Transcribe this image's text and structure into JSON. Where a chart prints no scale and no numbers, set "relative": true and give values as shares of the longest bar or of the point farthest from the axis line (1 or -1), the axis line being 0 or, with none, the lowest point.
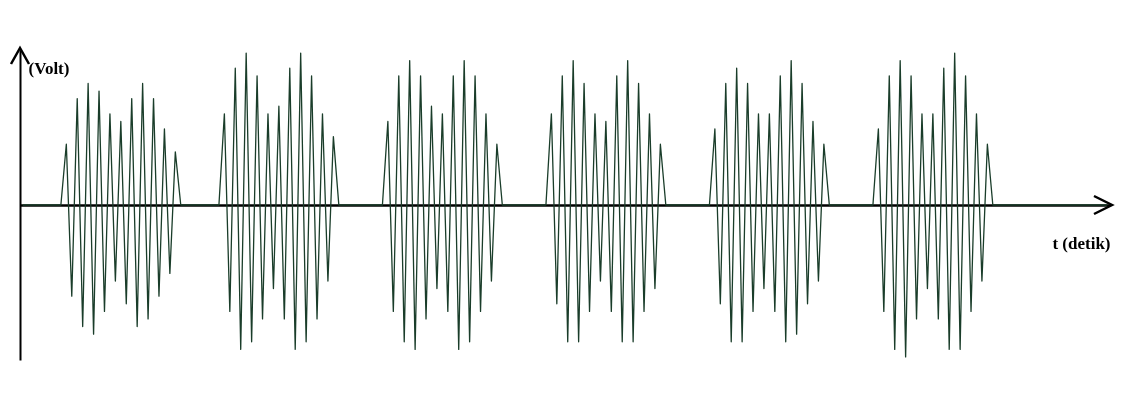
{
  "chart_data": {
    "type": "line",
    "xlabel": "t (detik)",
    "ylabel": "(Volt)",
    "relative": true,
    "line_style": "solid",
    "categories": [
      null,
      null,
      null,
      null,
      null,
      null,
      null,
      null,
      null,
      null,
      null,
      null,
      null,
      null,
      null,
      null,
      null,
      null,
      null,
      null,
      null,
      null,
      null,
      null,
      null,
      null,
      null,
      null,
      null,
      null,
      null,
      null,
      null,
      null,
      null,
      null,
      null,
      null,
      null,
      null,
      null,
      null,
      null,
      null,
      null,
      null,
      null,
      null,
      null,
      null,
      null,
      null,
      null,
      null,
      null,
      null,
      null,
      null,
      null,
      null,
      null,
      null,
      null,
      null,
      null,
      null,
      null,
      null,
      null,
      null,
      null,
      null,
      null,
      null,
      null,
      null,
      null,
      null,
      null,
      null,
      null,
      null,
      null,
      null,
      null,
      null,
      null,
      null,
      null,
      null,
      null,
      null,
      null,
      null,
      null,
      null,
      null,
      null,
      null,
      null,
      null,
      null,
      null,
      null,
      null,
      null,
      null,
      null,
      null,
      null,
      null,
      null,
      null,
      null,
      null,
      null,
      null,
      null,
      null,
      null,
      null,
      null,
      null,
      null,
      null,
      null,
      null,
      null,
      null,
      null,
      null,
      null,
      null,
      null,
      null,
      null,
      null,
      null,
      null,
      null,
      null,
      null,
      null,
      null,
      null,
      null,
      null,
      null,
      null,
      null,
      null,
      null,
      null,
      null,
      null,
      null,
      null,
      null,
      null,
      null,
      null,
      null,
      null,
      null,
      null,
      null,
      null,
      null,
      null,
      null,
      null,
      null,
      null,
      null,
      null,
      null,
      null,
      null,
      null,
      null,
      null,
      null,
      null,
      null,
      null,
      null,
      null,
      null,
      null,
      null,
      null,
      null,
      null,
      null,
      null,
      null,
      null,
      null,
      null,
      null
    ],
    "series": [
      {
        "color": "#1a3d2a",
        "values": [
          0,
          0,
          0,
          0,
          0,
          0,
          0,
          0,
          0.4,
          -0.6,
          0.7,
          -0.8,
          0.8,
          -0.85,
          0.75,
          -0.7,
          0.6,
          -0.5,
          0.55,
          -0.65,
          0.7,
          -0.8,
          0.8,
          -0.75,
          0.7,
          -0.6,
          0.5,
          -0.45,
          0.35,
          0,
          0,
          0,
          0,
          0,
          0,
          0,
          0,
          0.6,
          -0.7,
          0.9,
          -0.95,
          1.0,
          -0.9,
          0.85,
          -0.75,
          0.6,
          -0.55,
          0.65,
          -0.75,
          0.9,
          -0.95,
          1.0,
          -0.9,
          0.85,
          -0.75,
          0.6,
          -0.5,
          0.45,
          0,
          0,
          0,
          0,
          0,
          0,
          0,
          0,
          0,
          0.55,
          -0.7,
          0.85,
          -0.9,
          0.95,
          -0.95,
          0.85,
          -0.75,
          0.65,
          -0.55,
          0.6,
          -0.7,
          0.85,
          -0.95,
          0.95,
          -0.9,
          0.85,
          -0.7,
          0.6,
          -0.5,
          0.4,
          0,
          0,
          0,
          0,
          0,
          0,
          0,
          0,
          0,
          0.6,
          -0.65,
          0.85,
          -0.9,
          0.95,
          -0.9,
          0.8,
          -0.7,
          0.6,
          -0.5,
          0.55,
          -0.7,
          0.85,
          -0.9,
          0.95,
          -0.9,
          0.8,
          -0.7,
          0.6,
          -0.55,
          0.4,
          0,
          0,
          0,
          0,
          0,
          0,
          0,
          0,
          0,
          0.5,
          -0.65,
          0.8,
          -0.9,
          0.9,
          -0.9,
          0.8,
          -0.7,
          0.6,
          -0.55,
          0.6,
          -0.7,
          0.85,
          -0.9,
          0.95,
          -0.85,
          0.8,
          -0.65,
          0.55,
          -0.5,
          0.4,
          0,
          0,
          0,
          0,
          0,
          0,
          0,
          0,
          0,
          0.5,
          -0.7,
          0.85,
          -0.95,
          0.95,
          -1.0,
          0.85,
          -0.75,
          0.6,
          -0.55,
          0.6,
          -0.75,
          0.9,
          -0.95,
          1.0,
          -0.95,
          0.85,
          -0.7,
          0.6,
          -0.5,
          0.4,
          0,
          0,
          0,
          0,
          0,
          0,
          0,
          0,
          0,
          0,
          0,
          0,
          0,
          0,
          0,
          0,
          0,
          0,
          0,
          0,
          0,
          0
        ]
      }
    ]
  }
}
